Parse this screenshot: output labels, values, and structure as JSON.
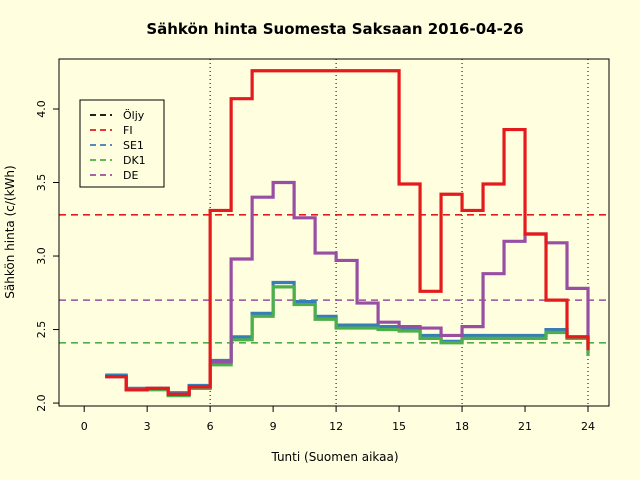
{
  "chart_data": {
    "type": "line",
    "title": "Sähkön hinta Suomesta Saksaan 2016-04-26",
    "xlabel": "Tunti (Suomen aikaa)",
    "ylabel": "Sähkön hinta (c/(kWh)",
    "xlim": [
      -1.2,
      25
    ],
    "ylim": [
      1.98,
      4.34
    ],
    "x_ticks": [
      0,
      3,
      6,
      9,
      12,
      15,
      18,
      21,
      24
    ],
    "y_ticks": [
      2.0,
      2.5,
      3.0,
      3.5,
      4.0
    ],
    "y_tick_labels": [
      "2.0",
      "2.5",
      "3.0",
      "3.5",
      "4.0"
    ],
    "vertical_gridlines_x": [
      6,
      12,
      18,
      24
    ],
    "legend_position": "top-left",
    "legend": [
      {
        "name": "Öljy",
        "color": "#000000"
      },
      {
        "name": "FI",
        "color": "#e41a1c"
      },
      {
        "name": "SE1",
        "color": "#377eb8"
      },
      {
        "name": "DK1",
        "color": "#4daf4a"
      },
      {
        "name": "DE",
        "color": "#984ea3"
      }
    ],
    "horizontal_reference_lines": [
      {
        "series": "FI",
        "color": "#e41a1c",
        "y": 3.28
      },
      {
        "series": "DE",
        "color": "#984ea3",
        "y": 2.7
      },
      {
        "series": "DK1",
        "color": "#4daf4a",
        "y": 2.41
      }
    ],
    "x": [
      1,
      2,
      3,
      4,
      5,
      6,
      7,
      8,
      9,
      10,
      11,
      12,
      13,
      14,
      15,
      16,
      17,
      18,
      19,
      20,
      21,
      22,
      23,
      24
    ],
    "series": [
      {
        "name": "SE1",
        "color": "#377eb8",
        "values": [
          2.19,
          2.1,
          2.1,
          2.07,
          2.12,
          2.29,
          2.45,
          2.61,
          2.82,
          2.69,
          2.59,
          2.53,
          2.53,
          2.52,
          2.5,
          2.46,
          2.42,
          2.46,
          2.46,
          2.46,
          2.46,
          2.5,
          2.45,
          2.34
        ]
      },
      {
        "name": "DK1",
        "color": "#4daf4a",
        "values": [
          2.18,
          2.09,
          2.09,
          2.05,
          2.1,
          2.26,
          2.43,
          2.59,
          2.79,
          2.67,
          2.57,
          2.51,
          2.51,
          2.5,
          2.49,
          2.44,
          2.41,
          2.44,
          2.44,
          2.44,
          2.44,
          2.48,
          2.44,
          2.32
        ]
      },
      {
        "name": "DE",
        "color": "#984ea3",
        "values": [
          2.18,
          2.09,
          2.1,
          2.06,
          2.11,
          2.28,
          2.98,
          3.4,
          3.5,
          3.26,
          3.02,
          2.97,
          2.68,
          2.55,
          2.52,
          2.51,
          2.46,
          2.52,
          2.88,
          3.1,
          3.15,
          3.09,
          2.78,
          2.38
        ]
      },
      {
        "name": "FI",
        "color": "#e41a1c",
        "values": [
          2.18,
          2.09,
          2.1,
          2.06,
          2.11,
          3.31,
          4.07,
          4.26,
          4.26,
          4.26,
          4.26,
          4.26,
          4.26,
          4.26,
          3.49,
          2.76,
          3.42,
          3.31,
          3.49,
          3.86,
          3.15,
          2.7,
          2.45,
          2.36
        ]
      }
    ]
  }
}
